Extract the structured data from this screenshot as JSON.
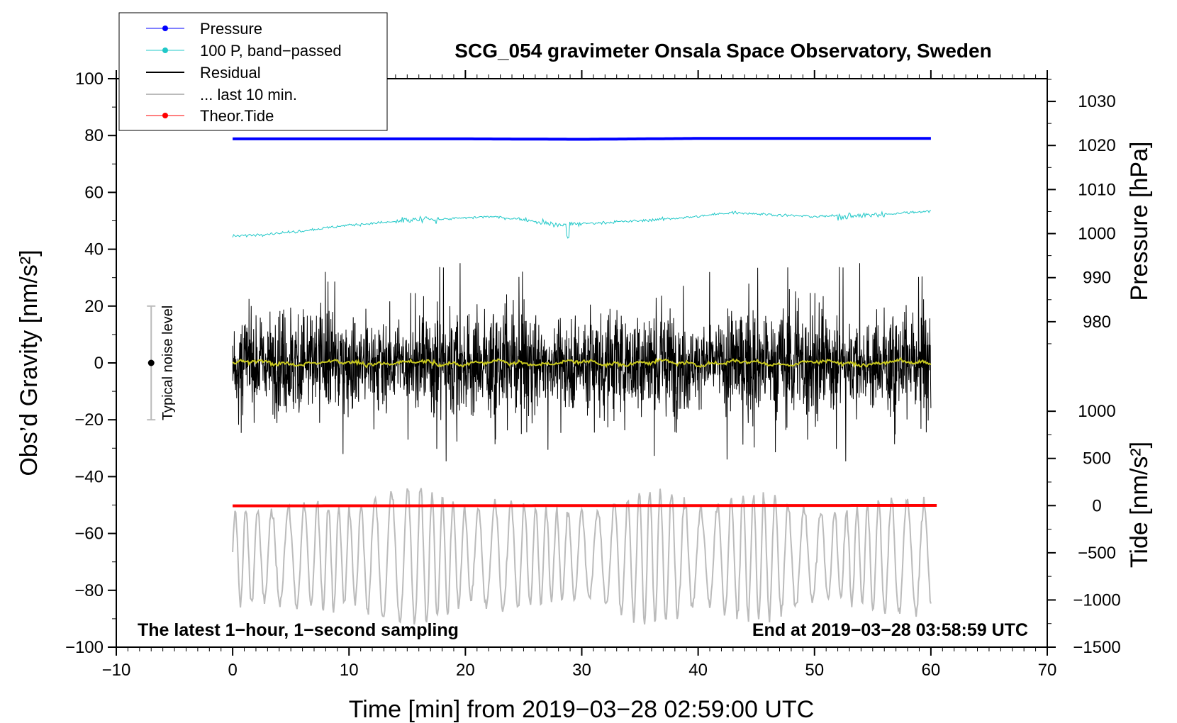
{
  "chart_data": {
    "type": "line",
    "title": "SCG_054 gravimeter Onsala Space Observatory, Sweden",
    "xlabel": "Time [min] from 2019−03−28 02:59:00 UTC",
    "ylabel_left": "Obs’d Gravity [nm/s²]",
    "ylabel_right_top": "Pressure [hPa]",
    "ylabel_right_bottom": "Tide [nm/s²]",
    "xlim": [
      -10,
      70
    ],
    "ylim_left": [
      -100,
      100
    ],
    "x_ticks": [
      "−10",
      "0",
      "10",
      "20",
      "30",
      "40",
      "50",
      "60",
      "70"
    ],
    "x_tick_values": [
      -10,
      0,
      10,
      20,
      30,
      40,
      50,
      60,
      70
    ],
    "y_left_ticks": [
      "100",
      "80",
      "60",
      "40",
      "20",
      "0",
      "−20",
      "−40",
      "−60",
      "−80",
      "−100"
    ],
    "y_left_tick_values": [
      100,
      80,
      60,
      40,
      20,
      0,
      -20,
      -40,
      -60,
      -80,
      -100
    ],
    "pressure_axis": {
      "ticks": [
        "1030",
        "1020",
        "1010",
        "1000",
        "990",
        "980"
      ],
      "tick_values": [
        1030,
        1020,
        1010,
        1000,
        990,
        980
      ],
      "scale_note": "1030 hPa aligns with gravity 92, 980 hPa aligns with 14.5"
    },
    "tide_axis": {
      "ticks": [
        "1000",
        "500",
        "0",
        "−500",
        "−1000",
        "−1500"
      ],
      "tick_values": [
        1000,
        500,
        0,
        -500,
        -1000,
        -1500
      ],
      "scale_note": "1000 aligns with gravity -17, -1500 aligns with -100"
    },
    "legend": [
      {
        "label": "Pressure",
        "color": "#0000ff",
        "marker": true
      },
      {
        "label": "100 P, band−passed",
        "color": "#20c8c8",
        "marker": true
      },
      {
        "label": "Residual",
        "color": "#000000",
        "marker": false
      },
      {
        "label": "... last 10 min.",
        "color": "#bbbbbb",
        "marker": false
      },
      {
        "label": "Theor.Tide",
        "color": "#ff0000",
        "marker": true
      }
    ],
    "series": [
      {
        "name": "Pressure",
        "unit": "hPa",
        "color": "#0000ff",
        "x": [
          0,
          10,
          20,
          30,
          40,
          50,
          60
        ],
        "values": [
          1021.5,
          1021.5,
          1021.5,
          1021.4,
          1021.6,
          1021.6,
          1021.6
        ]
      },
      {
        "name": "100 P, band−passed",
        "unit": "nm/s²",
        "color": "#20c8c8",
        "x": [
          0,
          5,
          10,
          15,
          20,
          22,
          25,
          28,
          30,
          35,
          40,
          43,
          47,
          50,
          55,
          60
        ],
        "values": [
          44.5,
          46,
          48.5,
          50,
          51,
          51.5,
          50.5,
          48.5,
          49,
          50,
          51.5,
          53,
          52,
          51.5,
          52,
          53.5
        ]
      },
      {
        "name": "Residual",
        "unit": "nm/s²",
        "color": "#000000",
        "x": [
          0,
          60
        ],
        "mean": 0,
        "amplitude_max": 36,
        "amplitude_min": -37
      },
      {
        "name": "Residual (smoothed)",
        "unit": "nm/s²",
        "color": "#c8c81e",
        "x": [
          0,
          60
        ],
        "mean": 0,
        "amplitude": 1.5
      },
      {
        "name": "... last 10 min.",
        "unit": "nm/s²",
        "color": "#bbbbbb",
        "x": [
          0,
          60
        ],
        "center": -68,
        "amplitude_max": -35,
        "amplitude_min": -92
      },
      {
        "name": "Theor.Tide",
        "unit": "nm/s²",
        "color": "#ff0000",
        "x": [
          0,
          60.5
        ],
        "values": [
          -2.5,
          2.5
        ]
      }
    ],
    "noise_bar": {
      "label": "Typical noise level",
      "x": -7,
      "center": 0,
      "low": -20,
      "high": 20
    },
    "annotations": {
      "bottom_left": "The latest 1−hour, 1−second sampling",
      "bottom_right": "End at 2019−03−28 03:58:59 UTC"
    }
  }
}
